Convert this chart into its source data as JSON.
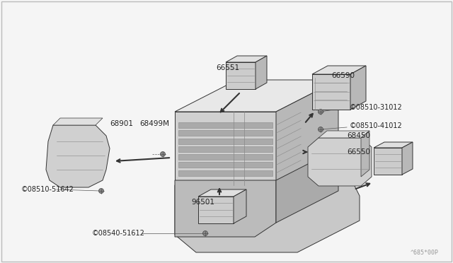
{
  "background_color": "#f5f5f5",
  "border_color": "#cccccc",
  "figsize": [
    6.4,
    3.72
  ],
  "dpi": 100,
  "watermark": "^685*00P",
  "lc": "#333333",
  "fc_light": "#e8e8e8",
  "fc_mid": "#d0d0d0",
  "fc_dark": "#b8b8b8",
  "fc_white": "#f0f0f0"
}
